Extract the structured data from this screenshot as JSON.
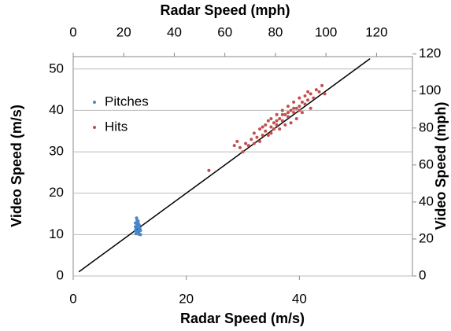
{
  "chart_data": {
    "type": "scatter",
    "x_label": "Radar Speed (m/s)",
    "x2_label": "Radar Speed (mph)",
    "y_label": "Video Speed (m/s)",
    "y2_label": "Video Speed (mph)",
    "xlim": [
      0,
      60
    ],
    "xticks": [
      0,
      20,
      40
    ],
    "x2lim": [
      0,
      134.2
    ],
    "x2ticks": [
      0,
      20,
      40,
      60,
      80,
      100,
      120
    ],
    "ylim": [
      0,
      53
    ],
    "yticks": [
      0,
      10,
      20,
      30,
      40,
      50
    ],
    "y2lim": [
      0,
      118.6
    ],
    "y2ticks": [
      0,
      20,
      40,
      60,
      80,
      100,
      120
    ],
    "grid": true,
    "legend": "upper left",
    "reference_line": {
      "color": "#000000",
      "x": [
        1,
        52.5
      ],
      "y": [
        1,
        52.5
      ]
    },
    "series": [
      {
        "name": "Pitches",
        "color": "#4a86c8",
        "x": [
          11.0,
          11.2,
          11.5,
          11.8,
          11.3,
          11.1,
          11.6,
          11.9,
          11.4,
          11.7,
          11.2,
          11.5,
          11.0,
          11.3,
          11.8,
          11.6,
          11.4,
          11.1,
          11.9,
          11.5,
          11.2,
          11.7,
          11.3,
          11.0,
          11.6
        ],
        "values": [
          11.0,
          12.0,
          10.5,
          11.5,
          13.0,
          10.2,
          12.5,
          10.0,
          11.8,
          12.2,
          14.0,
          10.8,
          12.8,
          13.5,
          11.2,
          10.4,
          12.6,
          11.6,
          11.0,
          13.2,
          10.6,
          11.4,
          12.4,
          11.9,
          10.1
        ]
      },
      {
        "name": "Hits",
        "color": "#c0504d",
        "x": [
          24,
          28.5,
          29,
          29.5,
          30,
          30.5,
          31,
          31.5,
          32,
          32,
          32.5,
          33,
          33,
          33.5,
          34,
          34,
          34.5,
          34.5,
          35,
          35,
          35.5,
          35.5,
          36,
          36,
          36.5,
          36.5,
          37,
          37,
          37.5,
          37.5,
          38,
          38,
          38.5,
          38.5,
          39,
          39,
          39.5,
          39.5,
          40,
          40,
          40.5,
          40.5,
          41,
          41,
          41.5,
          42,
          42,
          42.5,
          43,
          43.5,
          44,
          44.5,
          36,
          37,
          38,
          39,
          35,
          33.5,
          40,
          41.5
        ],
        "values": [
          25.5,
          31.5,
          32.5,
          31,
          30,
          32,
          31.5,
          33,
          34.5,
          32,
          33.5,
          35.5,
          32.5,
          34,
          36.5,
          35,
          34,
          37.5,
          36,
          38,
          35.5,
          37,
          39,
          36.5,
          38,
          35.5,
          40,
          37.5,
          39,
          36.5,
          41,
          38.5,
          40,
          37,
          42,
          39.5,
          40.5,
          38,
          43,
          41,
          42,
          39.5,
          41.5,
          43.5,
          42.5,
          44,
          40.5,
          43,
          45,
          44.5,
          46,
          44,
          37.5,
          39,
          39.5,
          40.5,
          34.5,
          36,
          40,
          44.5
        ]
      }
    ]
  }
}
